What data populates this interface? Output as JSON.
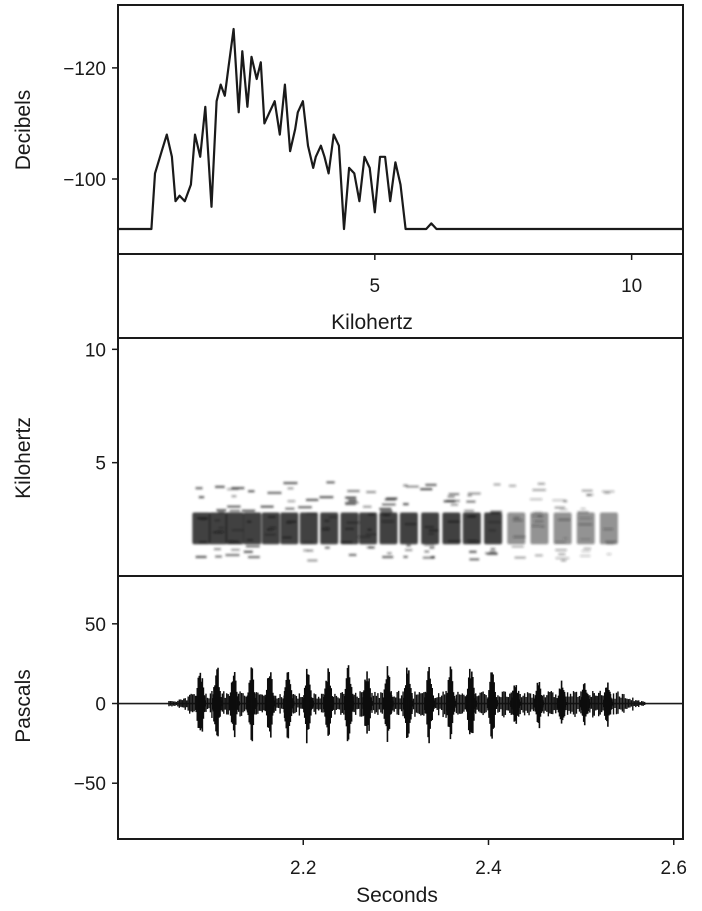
{
  "chart_data": [
    {
      "type": "line",
      "panel": "spectrum",
      "xlabel": "Kilohertz",
      "ylabel": "Decibels",
      "xlim": [
        0,
        11
      ],
      "ylim": [
        -91,
        -127
      ],
      "x_ticks": [
        5,
        10
      ],
      "y_ticks": [
        -100,
        -120
      ],
      "x_tick_labels": [
        "5",
        "10"
      ],
      "y_tick_labels": [
        "−100",
        "−120"
      ],
      "grid": false,
      "series": [
        {
          "x": [
            0,
            0.65,
            0.72,
            0.85,
            0.95,
            1.05,
            1.12,
            1.2,
            1.3,
            1.42,
            1.5,
            1.6,
            1.7,
            1.82,
            1.92,
            2.0,
            2.08,
            2.15,
            2.25,
            2.35,
            2.42,
            2.52,
            2.6,
            2.7,
            2.78,
            2.85,
            2.95,
            3.05,
            3.15,
            3.25,
            3.35,
            3.45,
            3.5,
            3.6,
            3.7,
            3.8,
            3.85,
            3.95,
            4.02,
            4.1,
            4.2,
            4.3,
            4.4,
            4.5,
            4.6,
            4.7,
            4.8,
            4.9,
            5.0,
            5.1,
            5.2,
            5.3,
            5.4,
            5.5,
            5.6,
            5.8,
            6.0,
            6.1,
            6.2,
            7.0,
            8.0,
            9.0,
            10.0,
            11.0
          ],
          "y": [
            -91,
            -91,
            -101,
            -105,
            -108,
            -104,
            -96,
            -97,
            -96,
            -99,
            -108,
            -104,
            -113,
            -95,
            -114,
            -117,
            -115,
            -120,
            -127,
            -112,
            -123,
            -113,
            -122,
            -118,
            -121,
            -110,
            -112,
            -114,
            -108,
            -117,
            -105,
            -109,
            -112,
            -114,
            -106,
            -102,
            -104,
            -106,
            -104,
            -101,
            -108,
            -106,
            -91,
            -102,
            -101,
            -96,
            -104,
            -102,
            -94,
            -104,
            -104,
            -96,
            -103,
            -99,
            -91,
            -91,
            -91,
            -92,
            -91,
            -91,
            -91,
            -91,
            -91,
            -91
          ]
        }
      ]
    },
    {
      "type": "heatmap",
      "panel": "spectrogram",
      "xlabel": "",
      "ylabel": "Kilohertz",
      "xlim": [
        2.0,
        2.61
      ],
      "ylim": [
        0,
        10.5
      ],
      "y_ticks": [
        5,
        10
      ],
      "y_tick_labels": [
        "5",
        "10"
      ],
      "grid": false,
      "frequency_range_khz": [
        0.7,
        4.2
      ],
      "dominant_band_khz": [
        1.4,
        2.8
      ],
      "syllable_times_s": [
        2.09,
        2.108,
        2.126,
        2.145,
        2.165,
        2.185,
        2.206,
        2.228,
        2.25,
        2.27,
        2.292,
        2.314,
        2.337,
        2.36,
        2.382,
        2.405,
        2.43,
        2.455,
        2.48,
        2.505,
        2.53
      ]
    },
    {
      "type": "line",
      "panel": "waveform",
      "xlabel": "Seconds",
      "ylabel": "Pascals",
      "xlim": [
        2.0,
        2.61
      ],
      "ylim": [
        -85,
        80
      ],
      "x_ticks": [
        2.2,
        2.4,
        2.6
      ],
      "y_ticks": [
        50,
        0,
        -50
      ],
      "x_tick_labels": [
        "2.2",
        "2.4",
        "2.6"
      ],
      "y_tick_labels": [
        "50",
        "0",
        "−50"
      ],
      "grid": false,
      "signal_range_s": [
        2.055,
        2.57
      ],
      "burst_times_s": [
        2.09,
        2.108,
        2.126,
        2.145,
        2.165,
        2.185,
        2.206,
        2.228,
        2.25,
        2.27,
        2.292,
        2.314,
        2.337,
        2.36,
        2.382,
        2.405,
        2.43,
        2.455,
        2.48,
        2.505,
        2.53
      ],
      "peak_amplitude_pa": 25
    }
  ]
}
